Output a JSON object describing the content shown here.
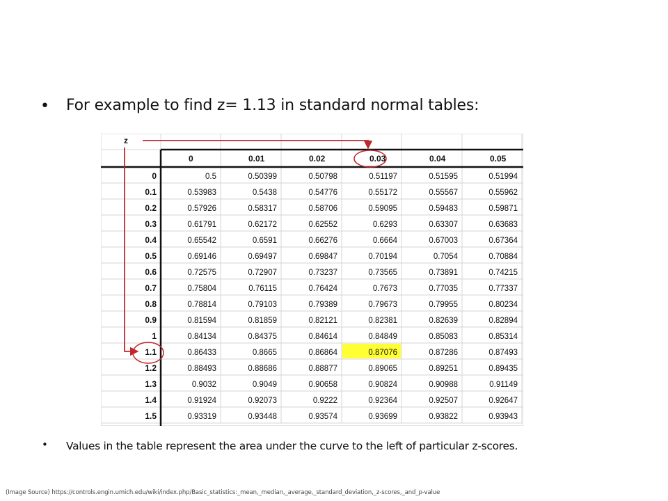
{
  "heading": {
    "bullet": "•",
    "text": "For example to find z= 1.13 in standard normal tables:"
  },
  "note": {
    "bullet": "•",
    "text": "Values in the table represent the area under the curve to the left of particular z-scores."
  },
  "source": "(Image Source) https://controls.engin.umich.edu/wiki/index.php/Basic_statistics:_mean,_median,_average,_standard_deviation,_z-scores,_and_p-value",
  "table": {
    "z_label": "z",
    "columns": [
      "0",
      "0.01",
      "0.02",
      "0.03",
      "0.04",
      "0.05"
    ],
    "rows": [
      {
        "z": "0",
        "values": [
          "0.5",
          "0.50399",
          "0.50798",
          "0.51197",
          "0.51595",
          "0.51994"
        ]
      },
      {
        "z": "0.1",
        "values": [
          "0.53983",
          "0.5438",
          "0.54776",
          "0.55172",
          "0.55567",
          "0.55962"
        ]
      },
      {
        "z": "0.2",
        "values": [
          "0.57926",
          "0.58317",
          "0.58706",
          "0.59095",
          "0.59483",
          "0.59871"
        ]
      },
      {
        "z": "0.3",
        "values": [
          "0.61791",
          "0.62172",
          "0.62552",
          "0.6293",
          "0.63307",
          "0.63683"
        ]
      },
      {
        "z": "0.4",
        "values": [
          "0.65542",
          "0.6591",
          "0.66276",
          "0.6664",
          "0.67003",
          "0.67364"
        ]
      },
      {
        "z": "0.5",
        "values": [
          "0.69146",
          "0.69497",
          "0.69847",
          "0.70194",
          "0.7054",
          "0.70884"
        ]
      },
      {
        "z": "0.6",
        "values": [
          "0.72575",
          "0.72907",
          "0.73237",
          "0.73565",
          "0.73891",
          "0.74215"
        ]
      },
      {
        "z": "0.7",
        "values": [
          "0.75804",
          "0.76115",
          "0.76424",
          "0.7673",
          "0.77035",
          "0.77337"
        ]
      },
      {
        "z": "0.8",
        "values": [
          "0.78814",
          "0.79103",
          "0.79389",
          "0.79673",
          "0.79955",
          "0.80234"
        ]
      },
      {
        "z": "0.9",
        "values": [
          "0.81594",
          "0.81859",
          "0.82121",
          "0.82381",
          "0.82639",
          "0.82894"
        ]
      },
      {
        "z": "1",
        "values": [
          "0.84134",
          "0.84375",
          "0.84614",
          "0.84849",
          "0.85083",
          "0.85314"
        ]
      },
      {
        "z": "1.1",
        "values": [
          "0.86433",
          "0.8665",
          "0.86864",
          "0.87076",
          "0.87286",
          "0.87493"
        ]
      },
      {
        "z": "1.2",
        "values": [
          "0.88493",
          "0.88686",
          "0.88877",
          "0.89065",
          "0.89251",
          "0.89435"
        ]
      },
      {
        "z": "1.3",
        "values": [
          "0.9032",
          "0.9049",
          "0.90658",
          "0.90824",
          "0.90988",
          "0.91149"
        ]
      },
      {
        "z": "1.4",
        "values": [
          "0.91924",
          "0.92073",
          "0.9222",
          "0.92364",
          "0.92507",
          "0.92647"
        ]
      },
      {
        "z": "1.5",
        "values": [
          "0.93319",
          "0.93448",
          "0.93574",
          "0.93699",
          "0.93822",
          "0.93943"
        ]
      }
    ],
    "highlight": {
      "row": "1.1",
      "column": "0.03",
      "color": "#ffff33"
    },
    "annotation_color": "#c0282d"
  }
}
